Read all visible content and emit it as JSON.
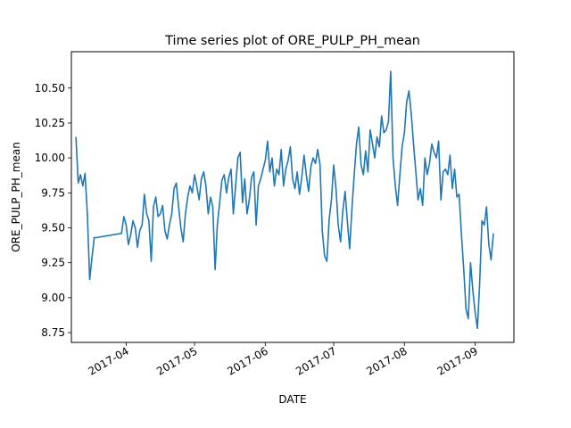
{
  "chart_data": {
    "type": "line",
    "title": "Time series plot of ORE_PULP_PH_mean",
    "xlabel": "DATE",
    "ylabel": "ORE_PULP_PH_mean",
    "xlim": [
      "2017-03-08",
      "2017-09-18"
    ],
    "ylim": [
      8.68,
      10.76
    ],
    "grid": false,
    "x_ticks": [
      {
        "date": "2017-04-01",
        "label": "2017-04"
      },
      {
        "date": "2017-05-01",
        "label": "2017-05"
      },
      {
        "date": "2017-06-01",
        "label": "2017-06"
      },
      {
        "date": "2017-07-01",
        "label": "2017-07"
      },
      {
        "date": "2017-08-01",
        "label": "2017-08"
      },
      {
        "date": "2017-09-01",
        "label": "2017-09"
      }
    ],
    "y_ticks": [
      {
        "value": 8.75,
        "label": "8.75"
      },
      {
        "value": 9.0,
        "label": "9.00"
      },
      {
        "value": 9.25,
        "label": "9.25"
      },
      {
        "value": 9.5,
        "label": "9.50"
      },
      {
        "value": 9.75,
        "label": "9.75"
      },
      {
        "value": 10.0,
        "label": "10.00"
      },
      {
        "value": 10.25,
        "label": "10.25"
      },
      {
        "value": 10.5,
        "label": "10.50"
      }
    ],
    "series": [
      {
        "color": "#1f77b4",
        "x": [
          "2017-03-10",
          "2017-03-11",
          "2017-03-12",
          "2017-03-13",
          "2017-03-14",
          "2017-03-15",
          "2017-03-16",
          "2017-03-17",
          "2017-03-18",
          "2017-03-19",
          "2017-03-30",
          "2017-03-31",
          "2017-04-01",
          "2017-04-02",
          "2017-04-03",
          "2017-04-04",
          "2017-04-05",
          "2017-04-06",
          "2017-04-07",
          "2017-04-08",
          "2017-04-09",
          "2017-04-10",
          "2017-04-11",
          "2017-04-12",
          "2017-04-13",
          "2017-04-14",
          "2017-04-15",
          "2017-04-16",
          "2017-04-17",
          "2017-04-18",
          "2017-04-19",
          "2017-04-20",
          "2017-04-21",
          "2017-04-22",
          "2017-04-23",
          "2017-04-24",
          "2017-04-25",
          "2017-04-26",
          "2017-04-27",
          "2017-04-28",
          "2017-04-29",
          "2017-04-30",
          "2017-05-01",
          "2017-05-02",
          "2017-05-03",
          "2017-05-04",
          "2017-05-05",
          "2017-05-06",
          "2017-05-07",
          "2017-05-08",
          "2017-05-09",
          "2017-05-10",
          "2017-05-11",
          "2017-05-12",
          "2017-05-13",
          "2017-05-14",
          "2017-05-15",
          "2017-05-16",
          "2017-05-17",
          "2017-05-18",
          "2017-05-19",
          "2017-05-20",
          "2017-05-21",
          "2017-05-22",
          "2017-05-23",
          "2017-05-24",
          "2017-05-25",
          "2017-05-26",
          "2017-05-27",
          "2017-05-28",
          "2017-05-29",
          "2017-05-30",
          "2017-05-31",
          "2017-06-01",
          "2017-06-02",
          "2017-06-03",
          "2017-06-04",
          "2017-06-05",
          "2017-06-06",
          "2017-06-07",
          "2017-06-08",
          "2017-06-09",
          "2017-06-10",
          "2017-06-11",
          "2017-06-12",
          "2017-06-13",
          "2017-06-14",
          "2017-06-15",
          "2017-06-16",
          "2017-06-17",
          "2017-06-18",
          "2017-06-19",
          "2017-06-20",
          "2017-06-21",
          "2017-06-22",
          "2017-06-23",
          "2017-06-24",
          "2017-06-25",
          "2017-06-26",
          "2017-06-27",
          "2017-06-28",
          "2017-06-29",
          "2017-06-30",
          "2017-07-01",
          "2017-07-02",
          "2017-07-03",
          "2017-07-04",
          "2017-07-05",
          "2017-07-06",
          "2017-07-07",
          "2017-07-08",
          "2017-07-09",
          "2017-07-10",
          "2017-07-11",
          "2017-07-12",
          "2017-07-13",
          "2017-07-14",
          "2017-07-15",
          "2017-07-16",
          "2017-07-17",
          "2017-07-18",
          "2017-07-19",
          "2017-07-20",
          "2017-07-21",
          "2017-07-22",
          "2017-07-23",
          "2017-07-24",
          "2017-07-25",
          "2017-07-26",
          "2017-07-27",
          "2017-07-28",
          "2017-07-29",
          "2017-07-30",
          "2017-07-31",
          "2017-08-01",
          "2017-08-02",
          "2017-08-03",
          "2017-08-04",
          "2017-08-05",
          "2017-08-06",
          "2017-08-07",
          "2017-08-08",
          "2017-08-09",
          "2017-08-10",
          "2017-08-11",
          "2017-08-12",
          "2017-08-13",
          "2017-08-14",
          "2017-08-15",
          "2017-08-16",
          "2017-08-17",
          "2017-08-18",
          "2017-08-19",
          "2017-08-20",
          "2017-08-21",
          "2017-08-22",
          "2017-08-23",
          "2017-08-24",
          "2017-08-25",
          "2017-08-26",
          "2017-08-27",
          "2017-08-28",
          "2017-08-29",
          "2017-08-30",
          "2017-08-31",
          "2017-09-01",
          "2017-09-02",
          "2017-09-03",
          "2017-09-04",
          "2017-09-05",
          "2017-09-06",
          "2017-09-07",
          "2017-09-08",
          "2017-09-09"
        ],
        "values": [
          10.15,
          9.82,
          9.88,
          9.8,
          9.89,
          9.6,
          9.13,
          9.28,
          9.43,
          9.43,
          9.46,
          9.58,
          9.52,
          9.38,
          9.45,
          9.55,
          9.5,
          9.36,
          9.48,
          9.52,
          9.74,
          9.6,
          9.55,
          9.26,
          9.65,
          9.72,
          9.58,
          9.6,
          9.66,
          9.48,
          9.42,
          9.52,
          9.6,
          9.78,
          9.82,
          9.65,
          9.5,
          9.4,
          9.6,
          9.72,
          9.8,
          9.75,
          9.88,
          9.8,
          9.7,
          9.85,
          9.9,
          9.8,
          9.6,
          9.72,
          9.65,
          9.2,
          9.52,
          9.68,
          9.84,
          9.88,
          9.75,
          9.86,
          9.92,
          9.6,
          9.8,
          10.0,
          10.04,
          9.68,
          9.85,
          9.6,
          9.7,
          9.86,
          9.9,
          9.52,
          9.8,
          9.85,
          9.92,
          9.98,
          10.12,
          9.9,
          10.0,
          9.8,
          9.92,
          9.88,
          10.06,
          9.8,
          9.92,
          9.98,
          10.08,
          9.85,
          9.78,
          9.9,
          9.74,
          9.86,
          10.02,
          9.88,
          9.76,
          9.94,
          10.0,
          9.96,
          10.06,
          9.95,
          9.48,
          9.3,
          9.26,
          9.56,
          9.7,
          9.95,
          9.78,
          9.52,
          9.4,
          9.62,
          9.76,
          9.54,
          9.35,
          9.64,
          9.88,
          10.1,
          10.22,
          9.95,
          9.88,
          10.05,
          9.9,
          10.2,
          10.1,
          10.0,
          10.15,
          10.08,
          10.3,
          10.18,
          10.2,
          10.26,
          10.62,
          10.0,
          9.8,
          9.66,
          9.88,
          10.08,
          10.18,
          10.4,
          10.48,
          10.32,
          10.1,
          9.9,
          9.7,
          9.78,
          9.66,
          10.0,
          9.88,
          9.96,
          10.1,
          10.04,
          10.0,
          10.12,
          9.7,
          9.9,
          9.92,
          9.88,
          10.02,
          9.78,
          9.92,
          9.72,
          9.74,
          9.45,
          9.2,
          8.92,
          8.85,
          9.25,
          9.05,
          8.9,
          8.78,
          9.1,
          9.55,
          9.52,
          9.65,
          9.38,
          9.27,
          9.46
        ]
      }
    ]
  }
}
